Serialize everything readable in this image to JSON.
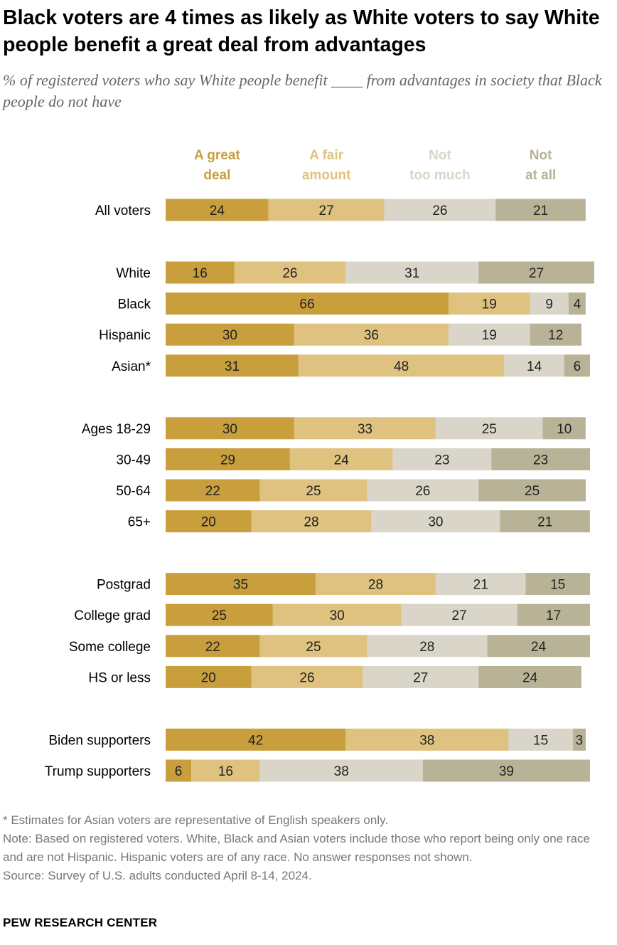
{
  "header": {
    "title": "Black voters are 4 times as likely as White voters to say White people benefit a great deal from advantages",
    "subtitle": "% of registered voters who say White people benefit ____ from advantages in society that Black people do not have"
  },
  "footer": {
    "notes": [
      "* Estimates for Asian voters are representative of English speakers only.",
      "Note: Based on registered voters. White, Black and Asian voters include those who report being only one race and are not Hispanic. Hispanic voters are of any race. No answer responses not shown.",
      "Source: Survey of U.S. adults conducted April 8-14, 2024."
    ],
    "brand": "PEW RESEARCH CENTER"
  },
  "chart_data": {
    "type": "bar",
    "orientation": "horizontal",
    "stacked": true,
    "series": [
      {
        "name": "A great deal",
        "label_lines": [
          "A great",
          "deal"
        ],
        "color": "#c99e3d",
        "label_color": "#c99e3d"
      },
      {
        "name": "A fair amount",
        "label_lines": [
          "A fair",
          "amount"
        ],
        "color": "#dfc27f",
        "label_color": "#dfc27f"
      },
      {
        "name": "Not too much",
        "label_lines": [
          "Not",
          "too much"
        ],
        "color": "#d9d5c8",
        "label_color": "#d9d5c8"
      },
      {
        "name": "Not at all",
        "label_lines": [
          "Not",
          "at all"
        ],
        "color": "#b8b296",
        "label_color": "#b8b296"
      }
    ],
    "groups": [
      {
        "rows": [
          {
            "label": "All voters",
            "values": [
              24,
              27,
              26,
              21
            ]
          }
        ]
      },
      {
        "rows": [
          {
            "label": "White",
            "values": [
              16,
              26,
              31,
              27
            ]
          },
          {
            "label": "Black",
            "values": [
              66,
              19,
              9,
              4
            ]
          },
          {
            "label": "Hispanic",
            "values": [
              30,
              36,
              19,
              12
            ]
          },
          {
            "label": "Asian*",
            "values": [
              31,
              48,
              14,
              6
            ]
          }
        ]
      },
      {
        "rows": [
          {
            "label": "Ages 18-29",
            "values": [
              30,
              33,
              25,
              10
            ]
          },
          {
            "label": "30-49",
            "values": [
              29,
              24,
              23,
              23
            ]
          },
          {
            "label": "50-64",
            "values": [
              22,
              25,
              26,
              25
            ]
          },
          {
            "label": "65+",
            "values": [
              20,
              28,
              30,
              21
            ]
          }
        ]
      },
      {
        "rows": [
          {
            "label": "Postgrad",
            "values": [
              35,
              28,
              21,
              15
            ]
          },
          {
            "label": "College grad",
            "values": [
              25,
              30,
              27,
              17
            ]
          },
          {
            "label": "Some college",
            "values": [
              22,
              25,
              28,
              24
            ]
          },
          {
            "label": "HS or less",
            "values": [
              20,
              26,
              27,
              24
            ]
          }
        ]
      },
      {
        "rows": [
          {
            "label": "Biden supporters",
            "values": [
              42,
              38,
              15,
              3
            ]
          },
          {
            "label": "Trump supporters",
            "values": [
              6,
              16,
              38,
              39
            ]
          }
        ]
      }
    ],
    "xlim": [
      0,
      100
    ],
    "legend_position": "top"
  }
}
